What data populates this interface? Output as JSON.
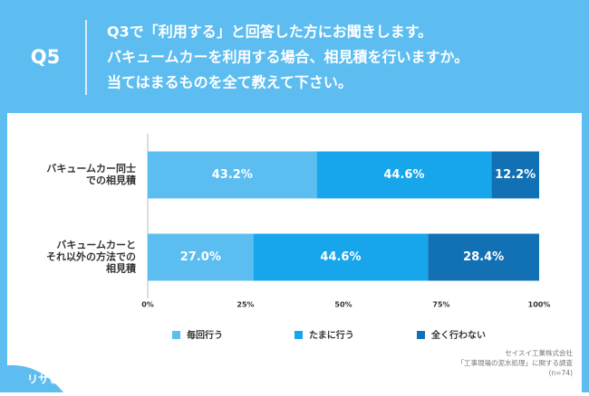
{
  "chart_data": {
    "type": "stacked-barh",
    "question_number": "Q5",
    "title": [
      "Q3で「利用する」と回答した方にお聞きします。",
      "バキュームカーを利用する場合、相見積を行いますか。",
      "当てはまるものを全て教えて下さい。"
    ],
    "categories": [
      "バキュームカー同士\nでの相見積",
      "バキュームカーと\nそれ以外の方法での\n相見積"
    ],
    "series": [
      {
        "name": "毎回行う",
        "color": "#5bbdf0",
        "values": [
          43.2,
          27.0
        ],
        "value_labels": [
          "43.2%",
          "27.0%"
        ]
      },
      {
        "name": "たまに行う",
        "color": "#17a5ec",
        "values": [
          44.6,
          44.6
        ],
        "value_labels": [
          "44.6%",
          "44.6%"
        ]
      },
      {
        "name": "全く行わない",
        "color": "#1271b5",
        "values": [
          12.2,
          28.4
        ],
        "value_labels": [
          "12.2%",
          "28.4%"
        ]
      }
    ],
    "xlim": [
      0,
      100
    ],
    "xticks": [
      {
        "value": 0,
        "label": "0%"
      },
      {
        "value": 25,
        "label": "25%"
      },
      {
        "value": 50,
        "label": "50%"
      },
      {
        "value": 75,
        "label": "75%"
      },
      {
        "value": 100,
        "label": "100%"
      }
    ],
    "grid": false,
    "source": [
      "セイスイ工業株式会社",
      "「工事現場の泥水処理」に関する調査",
      "(n=74)"
    ],
    "logo": "リサピー"
  }
}
